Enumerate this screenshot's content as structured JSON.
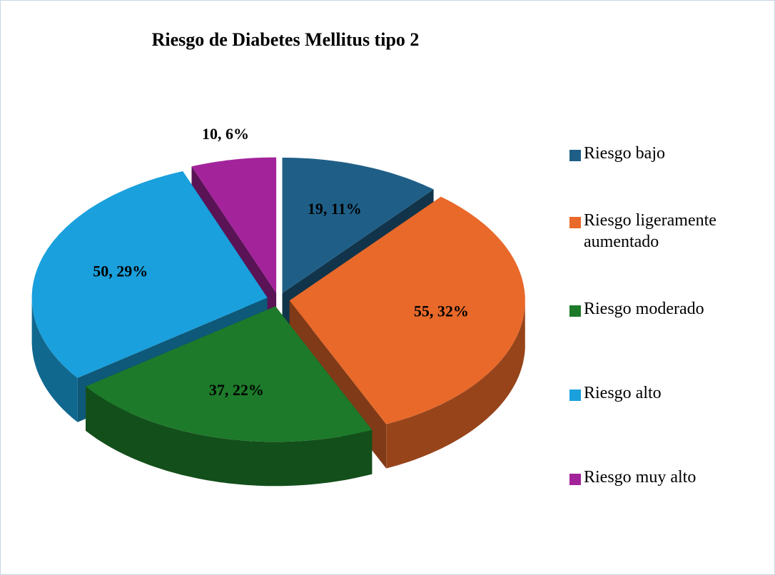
{
  "chart_data": {
    "type": "pie3d",
    "title": "Riesgo de Diabetes Mellitus tipo 2",
    "categories": [
      "Riesgo bajo",
      "Riesgo ligeramente aumentado",
      "Riesgo moderado",
      "Riesgo alto",
      "Riesgo muy alto"
    ],
    "values": [
      19,
      55,
      37,
      50,
      10
    ],
    "value_labels": [
      "19, 11%",
      "55, 32%",
      "37, 22%",
      "50, 29%",
      "10, 6%"
    ],
    "colors": [
      "#1f5f87",
      "#e8692a",
      "#1d7a2a",
      "#1aa0dc",
      "#a3239b"
    ],
    "legend": "right"
  }
}
